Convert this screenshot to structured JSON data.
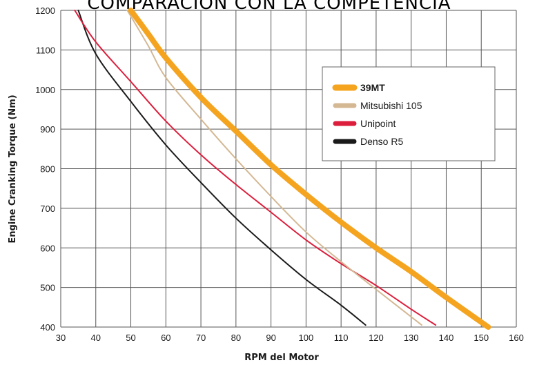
{
  "chart_data": {
    "type": "line",
    "title": "COMPARACIÓN CON LA COMPETENCIA",
    "xlabel": "RPM del Motor",
    "ylabel": "Engine Cranking Torque (Nm)",
    "xlim": [
      30,
      160
    ],
    "ylim": [
      400,
      1200
    ],
    "x_ticks": [
      30,
      40,
      50,
      60,
      70,
      80,
      90,
      100,
      110,
      120,
      130,
      140,
      150,
      160
    ],
    "y_ticks": [
      400,
      500,
      600,
      700,
      800,
      900,
      1000,
      1100,
      1200
    ],
    "grid": true,
    "legend_position": "top-right",
    "series": [
      {
        "name": "39MT",
        "color": "#f4a41f",
        "emphasis": "thick",
        "points": [
          [
            50,
            1200
          ],
          [
            55,
            1140
          ],
          [
            60,
            1080
          ],
          [
            70,
            980
          ],
          [
            80,
            895
          ],
          [
            90,
            810
          ],
          [
            100,
            735
          ],
          [
            110,
            665
          ],
          [
            120,
            600
          ],
          [
            130,
            540
          ],
          [
            140,
            475
          ],
          [
            152,
            400
          ]
        ]
      },
      {
        "name": "Mitsubishi 105",
        "color": "#d4b894",
        "emphasis": "normal",
        "points": [
          [
            49,
            1200
          ],
          [
            55,
            1110
          ],
          [
            60,
            1030
          ],
          [
            70,
            925
          ],
          [
            80,
            825
          ],
          [
            90,
            730
          ],
          [
            100,
            640
          ],
          [
            110,
            565
          ],
          [
            120,
            495
          ],
          [
            133,
            405
          ]
        ]
      },
      {
        "name": "Unipoint",
        "color": "#dc1e3c",
        "emphasis": "normal",
        "points": [
          [
            34,
            1200
          ],
          [
            40,
            1120
          ],
          [
            50,
            1020
          ],
          [
            60,
            920
          ],
          [
            70,
            835
          ],
          [
            80,
            760
          ],
          [
            90,
            690
          ],
          [
            100,
            620
          ],
          [
            110,
            560
          ],
          [
            120,
            505
          ],
          [
            130,
            445
          ],
          [
            137,
            405
          ]
        ]
      },
      {
        "name": "Denso R5",
        "color": "#1a1a1a",
        "emphasis": "normal",
        "points": [
          [
            35,
            1200
          ],
          [
            40,
            1090
          ],
          [
            50,
            970
          ],
          [
            60,
            860
          ],
          [
            70,
            765
          ],
          [
            80,
            675
          ],
          [
            90,
            595
          ],
          [
            100,
            520
          ],
          [
            110,
            455
          ],
          [
            117,
            405
          ]
        ]
      }
    ]
  }
}
